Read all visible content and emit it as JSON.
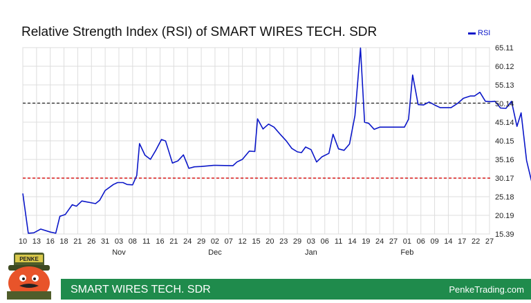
{
  "title": "Relative Strength Index (RSI) of SMART WIRES TECH. SDR",
  "legend_label": "RSI",
  "footer": {
    "name": "SMART WIRES TECH. SDR",
    "site": "PenkeTrading.com"
  },
  "logo_text": "PENKE",
  "colors": {
    "line": "#0a16c8",
    "footer": "#1f8b4c",
    "overbought": "#333333",
    "oversold": "#d40000"
  },
  "chart_data": {
    "type": "line",
    "title": "Relative Strength Index (RSI) of SMART WIRES TECH. SDR",
    "ylim": [
      15.39,
      65.11
    ],
    "y_ticks": [
      "65.11",
      "60.12",
      "55.13",
      "50.14",
      "45.14",
      "40.15",
      "35.16",
      "30.17",
      "25.18",
      "20.19",
      "15.39"
    ],
    "x_ticks": [
      "10",
      "13",
      "16",
      "18",
      "21",
      "26",
      "31",
      "03",
      "08",
      "11",
      "16",
      "21",
      "24",
      "29",
      "02",
      "07",
      "12",
      "15",
      "20",
      "23",
      "29",
      "03",
      "06",
      "11",
      "14",
      "19",
      "24",
      "27",
      "01",
      "06",
      "09",
      "14",
      "17",
      "22",
      "27"
    ],
    "month_labels": [
      {
        "label": "Nov",
        "tick_index": 7
      },
      {
        "label": "Dec",
        "tick_index": 14
      },
      {
        "label": "Jan",
        "tick_index": 21
      },
      {
        "label": "Feb",
        "tick_index": 28
      }
    ],
    "reference_lines": [
      {
        "value": 50.3,
        "color": "#333333"
      },
      {
        "value": 30.3,
        "color": "#d40000"
      }
    ],
    "series": [
      {
        "name": "RSI",
        "points": [
          [
            0.0,
            26.2
          ],
          [
            0.4,
            15.6
          ],
          [
            0.8,
            15.7
          ],
          [
            1.3,
            16.7
          ],
          [
            2.0,
            15.9
          ],
          [
            2.4,
            15.6
          ],
          [
            2.7,
            20.1
          ],
          [
            3.1,
            20.6
          ],
          [
            3.6,
            23.2
          ],
          [
            3.9,
            22.8
          ],
          [
            4.3,
            24.2
          ],
          [
            5.3,
            23.5
          ],
          [
            5.6,
            24.4
          ],
          [
            6.0,
            27.0
          ],
          [
            6.6,
            28.6
          ],
          [
            6.9,
            29.1
          ],
          [
            7.3,
            29.1
          ],
          [
            7.6,
            28.6
          ],
          [
            8.0,
            28.5
          ],
          [
            8.3,
            31.0
          ],
          [
            8.5,
            39.5
          ],
          [
            8.9,
            36.4
          ],
          [
            9.3,
            35.3
          ],
          [
            9.7,
            37.8
          ],
          [
            10.1,
            40.6
          ],
          [
            10.4,
            40.2
          ],
          [
            10.9,
            34.3
          ],
          [
            11.3,
            34.9
          ],
          [
            11.7,
            36.5
          ],
          [
            12.1,
            32.9
          ],
          [
            12.5,
            33.3
          ],
          [
            13.0,
            33.4
          ],
          [
            13.9,
            33.7
          ],
          [
            14.1,
            33.7
          ],
          [
            15.3,
            33.6
          ],
          [
            15.6,
            34.6
          ],
          [
            16.0,
            35.3
          ],
          [
            16.5,
            37.5
          ],
          [
            16.9,
            37.4
          ],
          [
            17.1,
            46.1
          ],
          [
            17.5,
            43.4
          ],
          [
            17.9,
            44.7
          ],
          [
            18.3,
            43.9
          ],
          [
            18.8,
            41.8
          ],
          [
            19.2,
            40.2
          ],
          [
            19.6,
            38.2
          ],
          [
            20.0,
            37.3
          ],
          [
            20.3,
            37.1
          ],
          [
            20.6,
            38.6
          ],
          [
            21.0,
            37.9
          ],
          [
            21.4,
            34.6
          ],
          [
            21.8,
            36.0
          ],
          [
            22.3,
            36.9
          ],
          [
            22.6,
            42.0
          ],
          [
            23.0,
            38.1
          ],
          [
            23.4,
            37.7
          ],
          [
            23.8,
            39.4
          ],
          [
            24.2,
            47.0
          ],
          [
            24.6,
            65.0
          ],
          [
            24.9,
            45.2
          ],
          [
            25.2,
            44.9
          ],
          [
            25.6,
            43.3
          ],
          [
            26.0,
            43.9
          ],
          [
            26.4,
            43.9
          ],
          [
            27.0,
            43.9
          ],
          [
            27.4,
            43.9
          ],
          [
            27.8,
            43.9
          ],
          [
            28.1,
            46.0
          ],
          [
            28.4,
            57.8
          ],
          [
            28.8,
            49.9
          ],
          [
            29.2,
            49.8
          ],
          [
            29.6,
            50.6
          ],
          [
            30.0,
            49.8
          ],
          [
            30.4,
            49.1
          ],
          [
            31.2,
            49.1
          ],
          [
            31.7,
            50.3
          ],
          [
            32.1,
            51.6
          ],
          [
            32.6,
            52.2
          ],
          [
            32.9,
            52.2
          ],
          [
            33.3,
            53.2
          ],
          [
            33.7,
            50.8
          ],
          [
            34.1,
            50.7
          ],
          [
            34.4,
            50.8
          ],
          [
            34.8,
            49.0
          ],
          [
            35.2,
            48.9
          ],
          [
            35.6,
            50.8
          ],
          [
            36.0,
            44.1
          ],
          [
            36.3,
            47.7
          ],
          [
            36.7,
            35.0
          ],
          [
            37.1,
            28.9
          ],
          [
            37.5,
            28.9
          ],
          [
            37.9,
            32.8
          ],
          [
            38.3,
            32.5
          ],
          [
            38.6,
            30.8
          ],
          [
            38.8,
            30.5
          ]
        ]
      }
    ]
  }
}
